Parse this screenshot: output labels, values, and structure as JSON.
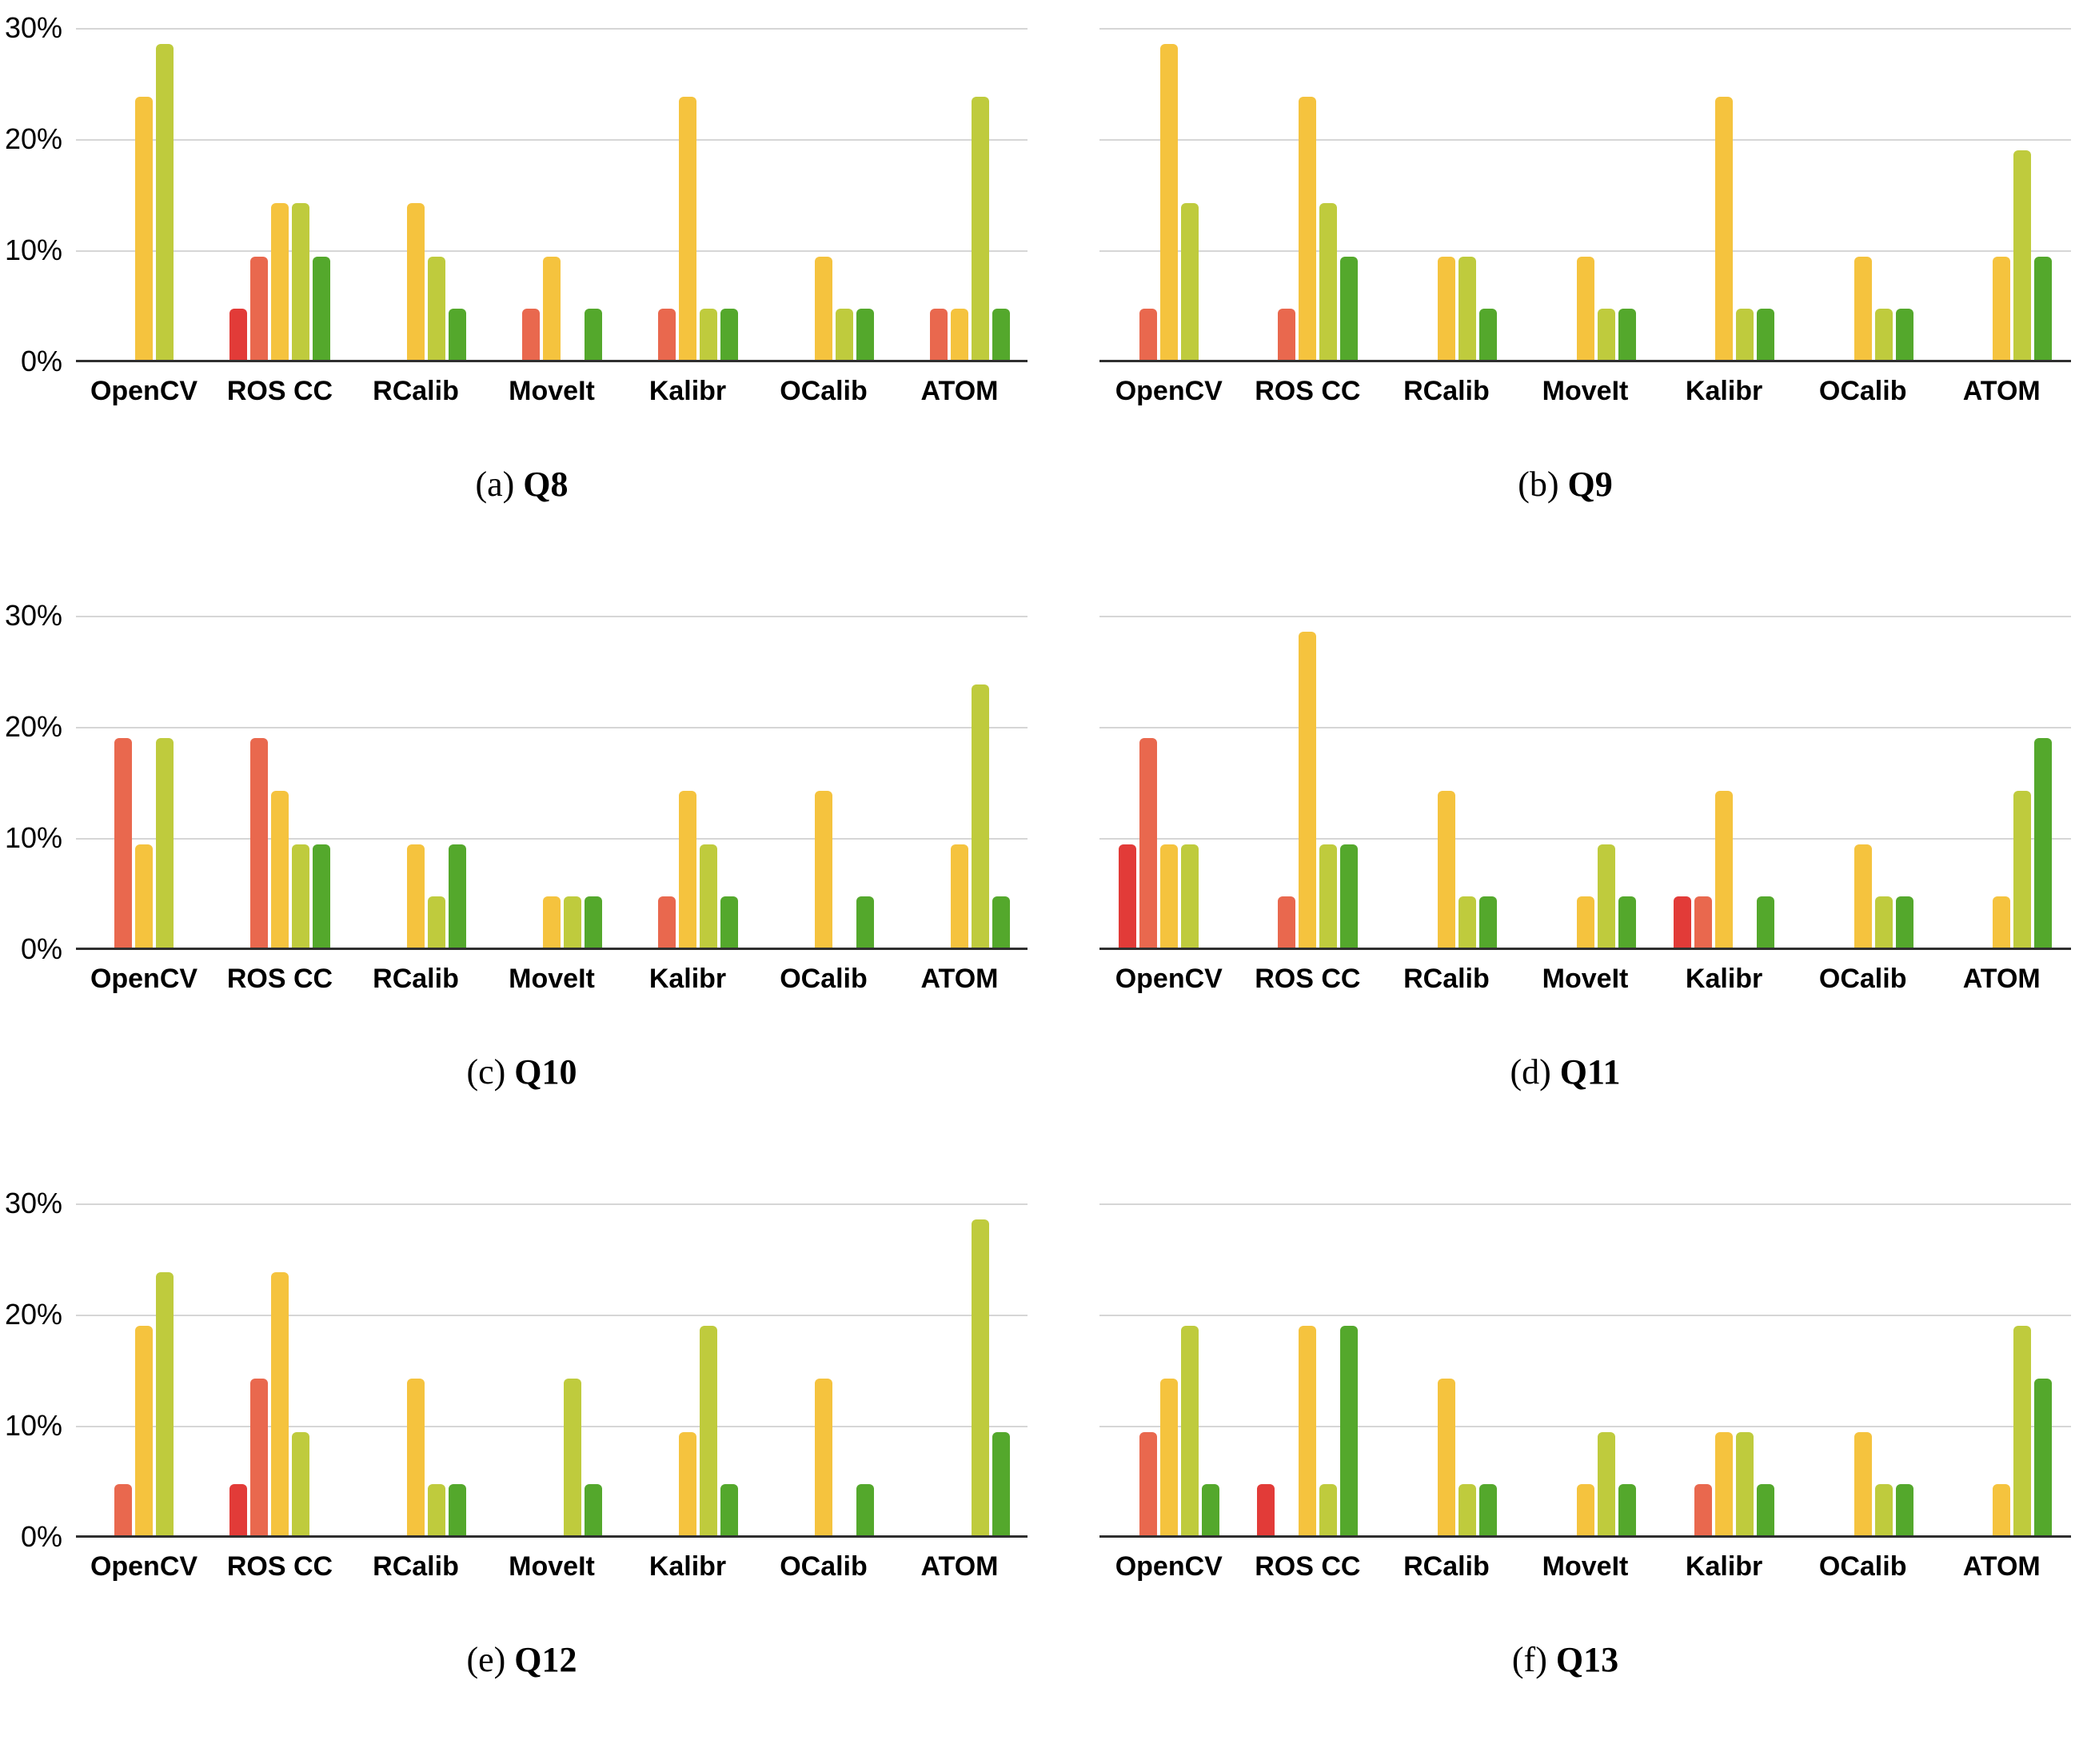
{
  "figure": {
    "y_ticks": [
      "30%",
      "20%",
      "10%",
      "0%"
    ],
    "categories": [
      "OpenCV",
      "ROS CC",
      "RCalib",
      "MoveIt",
      "Kalibr",
      "OCalib",
      "ATOM"
    ],
    "series_colors": {
      "red": "#e23b38",
      "orange-red": "#e9684e",
      "yellow": "#f5c33e",
      "yellow-green": "#bfcb3d",
      "green": "#54a82c"
    },
    "gridline_color": "#d6d6d6",
    "axis_color": "#2f2f2f"
  },
  "chart_data": [
    {
      "type": "bar",
      "caption_prefix": "(a)",
      "title": "Q8",
      "ylim": [
        0,
        30
      ],
      "grid": true,
      "legend": "none",
      "y_axis_visible": true,
      "y_ticks": [
        "30%",
        "20%",
        "10%",
        "0%"
      ],
      "categories": [
        "OpenCV",
        "ROS CC",
        "RCalib",
        "MoveIt",
        "Kalibr",
        "OCalib",
        "ATOM"
      ],
      "series": [
        {
          "name": "red",
          "color": "#e23b38",
          "values": [
            0,
            4.8,
            0,
            0,
            0,
            0,
            0
          ]
        },
        {
          "name": "orange-red",
          "color": "#e9684e",
          "values": [
            0,
            9.5,
            0,
            4.8,
            4.8,
            0,
            4.8
          ]
        },
        {
          "name": "yellow",
          "color": "#f5c33e",
          "values": [
            23.8,
            14.3,
            14.3,
            9.5,
            23.8,
            9.5,
            4.8
          ]
        },
        {
          "name": "yellow-green",
          "color": "#bfcb3d",
          "values": [
            28.6,
            14.3,
            9.5,
            0,
            4.8,
            4.8,
            23.8
          ]
        },
        {
          "name": "green",
          "color": "#54a82c",
          "values": [
            0,
            9.5,
            4.8,
            4.8,
            4.8,
            4.8,
            4.8
          ]
        }
      ]
    },
    {
      "type": "bar",
      "caption_prefix": "(b)",
      "title": "Q9",
      "ylim": [
        0,
        30
      ],
      "grid": true,
      "legend": "none",
      "y_axis_visible": false,
      "y_ticks": [
        "30%",
        "20%",
        "10%",
        "0%"
      ],
      "categories": [
        "OpenCV",
        "ROS CC",
        "RCalib",
        "MoveIt",
        "Kalibr",
        "OCalib",
        "ATOM"
      ],
      "series": [
        {
          "name": "red",
          "color": "#e23b38",
          "values": [
            0,
            0,
            0,
            0,
            0,
            0,
            0
          ]
        },
        {
          "name": "orange-red",
          "color": "#e9684e",
          "values": [
            4.8,
            4.8,
            0,
            0,
            0,
            0,
            0
          ]
        },
        {
          "name": "yellow",
          "color": "#f5c33e",
          "values": [
            28.6,
            23.8,
            9.5,
            9.5,
            23.8,
            9.5,
            9.5
          ]
        },
        {
          "name": "yellow-green",
          "color": "#bfcb3d",
          "values": [
            14.3,
            14.3,
            9.5,
            4.8,
            4.8,
            4.8,
            19.0
          ]
        },
        {
          "name": "green",
          "color": "#54a82c",
          "values": [
            0,
            9.5,
            4.8,
            4.8,
            4.8,
            4.8,
            9.5
          ]
        }
      ]
    },
    {
      "type": "bar",
      "caption_prefix": "(c)",
      "title": "Q10",
      "ylim": [
        0,
        30
      ],
      "grid": true,
      "legend": "none",
      "y_axis_visible": true,
      "y_ticks": [
        "30%",
        "20%",
        "10%",
        "0%"
      ],
      "categories": [
        "OpenCV",
        "ROS CC",
        "RCalib",
        "MoveIt",
        "Kalibr",
        "OCalib",
        "ATOM"
      ],
      "series": [
        {
          "name": "red",
          "color": "#e23b38",
          "values": [
            0,
            0,
            0,
            0,
            0,
            0,
            0
          ]
        },
        {
          "name": "orange-red",
          "color": "#e9684e",
          "values": [
            19.0,
            19.0,
            0,
            0,
            4.8,
            0,
            0
          ]
        },
        {
          "name": "yellow",
          "color": "#f5c33e",
          "values": [
            9.5,
            14.3,
            9.5,
            4.8,
            14.3,
            14.3,
            9.5
          ]
        },
        {
          "name": "yellow-green",
          "color": "#bfcb3d",
          "values": [
            19.0,
            9.5,
            4.8,
            4.8,
            9.5,
            0,
            23.8
          ]
        },
        {
          "name": "green",
          "color": "#54a82c",
          "values": [
            0,
            9.5,
            9.5,
            4.8,
            4.8,
            4.8,
            4.8
          ]
        }
      ]
    },
    {
      "type": "bar",
      "caption_prefix": "(d)",
      "title": "Q11",
      "ylim": [
        0,
        30
      ],
      "grid": true,
      "legend": "none",
      "y_axis_visible": false,
      "y_ticks": [
        "30%",
        "20%",
        "10%",
        "0%"
      ],
      "categories": [
        "OpenCV",
        "ROS CC",
        "RCalib",
        "MoveIt",
        "Kalibr",
        "OCalib",
        "ATOM"
      ],
      "series": [
        {
          "name": "red",
          "color": "#e23b38",
          "values": [
            9.5,
            0,
            0,
            0,
            4.8,
            0,
            0
          ]
        },
        {
          "name": "orange-red",
          "color": "#e9684e",
          "values": [
            19.0,
            4.8,
            0,
            0,
            4.8,
            0,
            0
          ]
        },
        {
          "name": "yellow",
          "color": "#f5c33e",
          "values": [
            9.5,
            28.6,
            14.3,
            4.8,
            14.3,
            9.5,
            4.8
          ]
        },
        {
          "name": "yellow-green",
          "color": "#bfcb3d",
          "values": [
            9.5,
            9.5,
            4.8,
            9.5,
            0,
            4.8,
            14.3
          ]
        },
        {
          "name": "green",
          "color": "#54a82c",
          "values": [
            0,
            9.5,
            4.8,
            4.8,
            4.8,
            4.8,
            19.0
          ]
        }
      ]
    },
    {
      "type": "bar",
      "caption_prefix": "(e)",
      "title": "Q12",
      "ylim": [
        0,
        30
      ],
      "grid": true,
      "legend": "none",
      "y_axis_visible": true,
      "y_ticks": [
        "30%",
        "20%",
        "10%",
        "0%"
      ],
      "categories": [
        "OpenCV",
        "ROS CC",
        "RCalib",
        "MoveIt",
        "Kalibr",
        "OCalib",
        "ATOM"
      ],
      "series": [
        {
          "name": "red",
          "color": "#e23b38",
          "values": [
            0,
            4.8,
            0,
            0,
            0,
            0,
            0
          ]
        },
        {
          "name": "orange-red",
          "color": "#e9684e",
          "values": [
            4.8,
            14.3,
            0,
            0,
            0,
            0,
            0
          ]
        },
        {
          "name": "yellow",
          "color": "#f5c33e",
          "values": [
            19.0,
            23.8,
            14.3,
            0,
            9.5,
            14.3,
            0
          ]
        },
        {
          "name": "yellow-green",
          "color": "#bfcb3d",
          "values": [
            23.8,
            9.5,
            4.8,
            14.3,
            19.0,
            0,
            28.6
          ]
        },
        {
          "name": "green",
          "color": "#54a82c",
          "values": [
            0,
            0,
            4.8,
            4.8,
            4.8,
            4.8,
            9.5
          ]
        }
      ]
    },
    {
      "type": "bar",
      "caption_prefix": "(f)",
      "title": "Q13",
      "ylim": [
        0,
        30
      ],
      "grid": true,
      "legend": "none",
      "y_axis_visible": false,
      "y_ticks": [
        "30%",
        "20%",
        "10%",
        "0%"
      ],
      "categories": [
        "OpenCV",
        "ROS CC",
        "RCalib",
        "MoveIt",
        "Kalibr",
        "OCalib",
        "ATOM"
      ],
      "series": [
        {
          "name": "red",
          "color": "#e23b38",
          "values": [
            0,
            4.8,
            0,
            0,
            0,
            0,
            0
          ]
        },
        {
          "name": "orange-red",
          "color": "#e9684e",
          "values": [
            9.5,
            0,
            0,
            0,
            4.8,
            0,
            0
          ]
        },
        {
          "name": "yellow",
          "color": "#f5c33e",
          "values": [
            14.3,
            19.0,
            14.3,
            4.8,
            9.5,
            9.5,
            4.8
          ]
        },
        {
          "name": "yellow-green",
          "color": "#bfcb3d",
          "values": [
            19.0,
            4.8,
            4.8,
            9.5,
            9.5,
            4.8,
            19.0
          ]
        },
        {
          "name": "green",
          "color": "#54a82c",
          "values": [
            4.8,
            19.0,
            4.8,
            4.8,
            4.8,
            4.8,
            14.3
          ]
        }
      ]
    }
  ]
}
